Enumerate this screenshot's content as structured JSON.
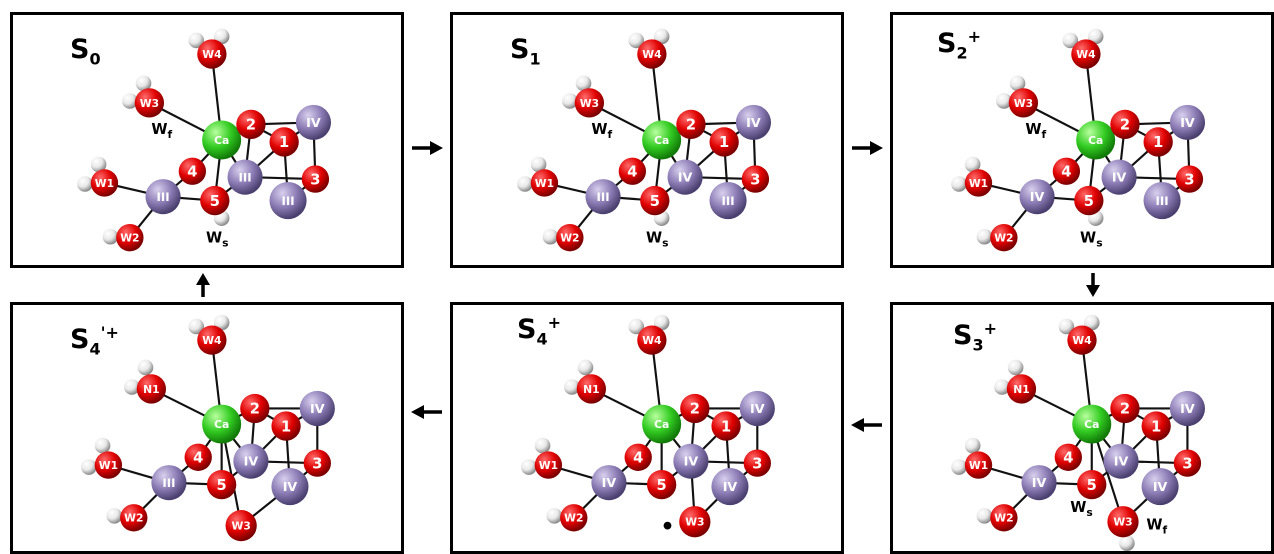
{
  "colors": {
    "oxygen": "#e00000",
    "manganese": "#8c7cb5",
    "calcium": "#33cc22",
    "hydrogen": "#e8e8e8",
    "bond": "#111111"
  },
  "panels": [
    {
      "id": "s0",
      "state": {
        "base": "S",
        "sub": "0",
        "sup": ""
      },
      "atoms": {
        "W4": "W4",
        "W3": "W3",
        "W1": "W1",
        "W2": "W2",
        "Ca": "Ca",
        "O1": "1",
        "O2": "2",
        "O3": "3",
        "O4": "4",
        "O5": "5",
        "MnA": "III",
        "MnB": "III",
        "MnC": "III",
        "MnD": "IV"
      },
      "wf": {
        "base": "W",
        "sub": "f"
      },
      "ws": {
        "base": "W",
        "sub": "s"
      }
    },
    {
      "id": "s1",
      "state": {
        "base": "S",
        "sub": "1",
        "sup": ""
      },
      "atoms": {
        "W4": "W4",
        "W3": "W3",
        "W1": "W1",
        "W2": "W2",
        "Ca": "Ca",
        "O1": "1",
        "O2": "2",
        "O3": "3",
        "O4": "4",
        "O5": "5",
        "MnA": "III",
        "MnB": "IV",
        "MnC": "III",
        "MnD": "IV"
      },
      "wf": {
        "base": "W",
        "sub": "f"
      },
      "ws": {
        "base": "W",
        "sub": "s"
      }
    },
    {
      "id": "s2",
      "state": {
        "base": "S",
        "sub": "2",
        "sup": "+"
      },
      "atoms": {
        "W4": "W4",
        "W3": "W3",
        "W1": "W1",
        "W2": "W2",
        "Ca": "Ca",
        "O1": "1",
        "O2": "2",
        "O3": "3",
        "O4": "4",
        "O5": "5",
        "MnA": "IV",
        "MnB": "IV",
        "MnC": "III",
        "MnD": "IV"
      },
      "wf": {
        "base": "W",
        "sub": "f"
      },
      "ws": {
        "base": "W",
        "sub": "s"
      }
    },
    {
      "id": "s4p",
      "state": {
        "base": "S",
        "sub": "4",
        "sup": "'+"
      },
      "atoms": {
        "W4": "W4",
        "N1": "N1",
        "W1": "W1",
        "W2": "W2",
        "W3": "W3",
        "Ca": "Ca",
        "O1": "1",
        "O2": "2",
        "O3": "3",
        "O4": "4",
        "O5": "5",
        "MnA": "III",
        "MnB": "IV",
        "MnC": "IV",
        "MnD": "IV"
      }
    },
    {
      "id": "s4",
      "state": {
        "base": "S",
        "sub": "4",
        "sup": "+"
      },
      "atoms": {
        "W4": "W4",
        "N1": "N1",
        "W1": "W1",
        "W2": "W2",
        "W3": "W3",
        "Ca": "Ca",
        "O1": "1",
        "O2": "2",
        "O3": "3",
        "O4": "4",
        "O5": "5",
        "MnA": "IV",
        "MnB": "IV",
        "MnC": "IV",
        "MnD": "IV"
      }
    },
    {
      "id": "s3",
      "state": {
        "base": "S",
        "sub": "3",
        "sup": "+"
      },
      "atoms": {
        "W4": "W4",
        "N1": "N1",
        "W1": "W1",
        "W2": "W2",
        "W3": "W3",
        "Ca": "Ca",
        "O1": "1",
        "O2": "2",
        "O3": "3",
        "O4": "4",
        "O5": "5",
        "MnA": "IV",
        "MnB": "IV",
        "MnC": "IV",
        "MnD": "IV"
      },
      "wf": {
        "base": "W",
        "sub": "f"
      },
      "ws": {
        "base": "W",
        "sub": "s"
      }
    }
  ]
}
